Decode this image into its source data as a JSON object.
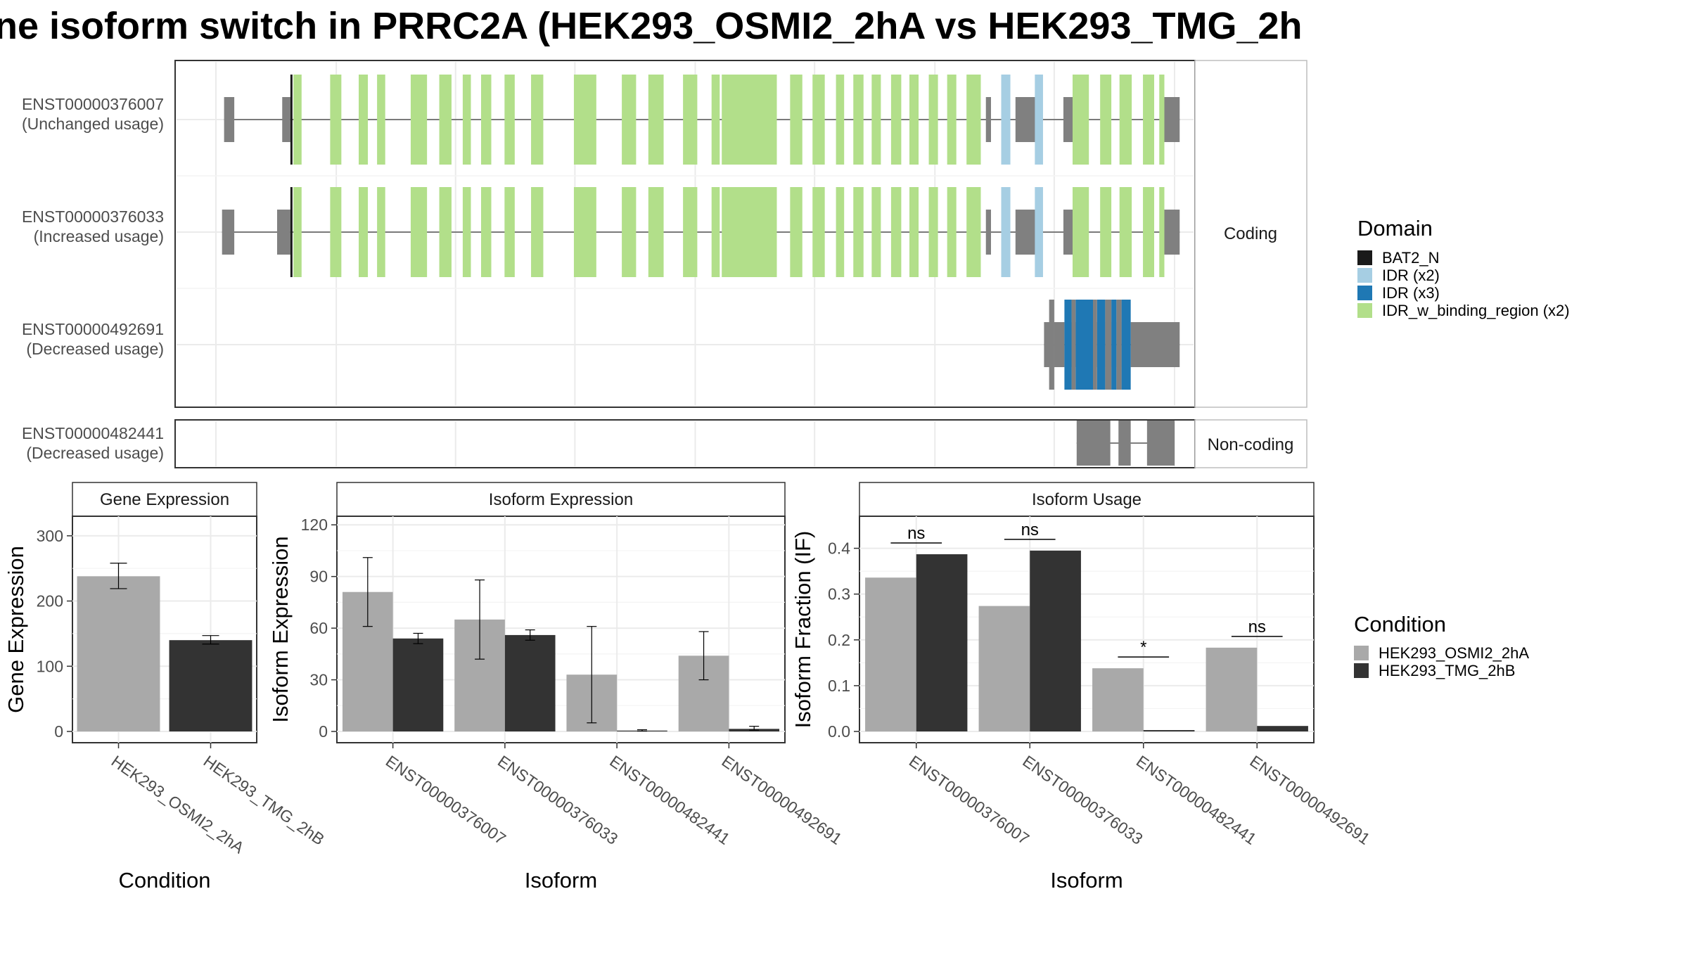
{
  "title": "ne isoform switch in PRRC2A (HEK293_OSMI2_2hA vs HEK293_TMG_2h",
  "colors": {
    "BAT2_N": "#1a1a1a",
    "IDR (x2)": "#a6cee3",
    "IDR (x3)": "#1f78b4",
    "IDR_w_binding_region (x2)": "#b2df8a",
    "utr": "#808080",
    "cond1": "#a9a9a9",
    "cond2": "#333333"
  },
  "transcript_plot": {
    "facets": [
      "Coding",
      "Non-coding"
    ],
    "domain_legend_title": "Domain",
    "domain_legend": [
      "BAT2_N",
      "IDR (x2)",
      "IDR (x3)",
      "IDR_w_binding_region (x2)"
    ],
    "x_gridlines": [
      0.04,
      0.158,
      0.275,
      0.392,
      0.51,
      0.627,
      0.745,
      0.862,
      0.98
    ],
    "transcripts": [
      {
        "id": "ENST00000376007",
        "usage": "(Unchanged usage)",
        "facet": "Coding",
        "utr_blocks": [
          [
            0.048,
            0.058
          ],
          [
            0.105,
            0.113
          ],
          [
            0.795,
            0.8
          ],
          [
            0.824,
            0.846
          ],
          [
            0.871,
            0.88
          ],
          [
            0.969,
            0.985
          ]
        ],
        "domain_blocks": [
          [
            "BAT2_N",
            0.113,
            0.115
          ],
          [
            "IDR_w_binding_region (x2)",
            0.116,
            0.124
          ],
          [
            "IDR_w_binding_region (x2)",
            0.152,
            0.163
          ],
          [
            "IDR_w_binding_region (x2)",
            0.18,
            0.189
          ],
          [
            "IDR_w_binding_region (x2)",
            0.198,
            0.206
          ],
          [
            "IDR_w_binding_region (x2)",
            0.231,
            0.247
          ],
          [
            "IDR_w_binding_region (x2)",
            0.259,
            0.271
          ],
          [
            "IDR_w_binding_region (x2)",
            0.282,
            0.29
          ],
          [
            "IDR_w_binding_region (x2)",
            0.3,
            0.31
          ],
          [
            "IDR_w_binding_region (x2)",
            0.323,
            0.333
          ],
          [
            "IDR_w_binding_region (x2)",
            0.349,
            0.361
          ],
          [
            "IDR_w_binding_region (x2)",
            0.391,
            0.413
          ],
          [
            "IDR_w_binding_region (x2)",
            0.438,
            0.452
          ],
          [
            "IDR_w_binding_region (x2)",
            0.464,
            0.479
          ],
          [
            "IDR_w_binding_region (x2)",
            0.498,
            0.512
          ],
          [
            "IDR_w_binding_region (x2)",
            0.526,
            0.534
          ],
          [
            "IDR_w_binding_region (x2)",
            0.541,
            0.568
          ],
          [
            "IDR_w_binding_region (x2)",
            0.536,
            0.59
          ],
          [
            "IDR_w_binding_region (x2)",
            0.603,
            0.615
          ],
          [
            "IDR_w_binding_region (x2)",
            0.625,
            0.637
          ],
          [
            "IDR_w_binding_region (x2)",
            0.648,
            0.656
          ],
          [
            "IDR_w_binding_region (x2)",
            0.665,
            0.675
          ],
          [
            "IDR_w_binding_region (x2)",
            0.683,
            0.692
          ],
          [
            "IDR_w_binding_region (x2)",
            0.702,
            0.712
          ],
          [
            "IDR_w_binding_region (x2)",
            0.72,
            0.729
          ],
          [
            "IDR_w_binding_region (x2)",
            0.739,
            0.748
          ],
          [
            "IDR_w_binding_region (x2)",
            0.757,
            0.766
          ],
          [
            "IDR_w_binding_region (x2)",
            0.776,
            0.79
          ],
          [
            "IDR (x2)",
            0.81,
            0.819
          ],
          [
            "IDR (x2)",
            0.843,
            0.851
          ],
          [
            "IDR_w_binding_region (x2)",
            0.88,
            0.896
          ],
          [
            "IDR_w_binding_region (x2)",
            0.907,
            0.918
          ],
          [
            "IDR_w_binding_region (x2)",
            0.926,
            0.938
          ],
          [
            "IDR_w_binding_region (x2)",
            0.949,
            0.96
          ],
          [
            "IDR_w_binding_region (x2)",
            0.965,
            0.97
          ]
        ]
      },
      {
        "id": "ENST00000376033",
        "usage": "(Increased usage)",
        "facet": "Coding",
        "utr_blocks": [
          [
            0.046,
            0.058
          ],
          [
            0.1,
            0.113
          ],
          [
            0.795,
            0.8
          ],
          [
            0.824,
            0.846
          ],
          [
            0.871,
            0.88
          ],
          [
            0.969,
            0.985
          ]
        ],
        "domain_blocks": [
          [
            "BAT2_N",
            0.113,
            0.115
          ],
          [
            "IDR_w_binding_region (x2)",
            0.116,
            0.124
          ],
          [
            "IDR_w_binding_region (x2)",
            0.152,
            0.163
          ],
          [
            "IDR_w_binding_region (x2)",
            0.18,
            0.189
          ],
          [
            "IDR_w_binding_region (x2)",
            0.198,
            0.206
          ],
          [
            "IDR_w_binding_region (x2)",
            0.231,
            0.247
          ],
          [
            "IDR_w_binding_region (x2)",
            0.259,
            0.271
          ],
          [
            "IDR_w_binding_region (x2)",
            0.282,
            0.29
          ],
          [
            "IDR_w_binding_region (x2)",
            0.3,
            0.31
          ],
          [
            "IDR_w_binding_region (x2)",
            0.323,
            0.333
          ],
          [
            "IDR_w_binding_region (x2)",
            0.349,
            0.361
          ],
          [
            "IDR_w_binding_region (x2)",
            0.391,
            0.413
          ],
          [
            "IDR_w_binding_region (x2)",
            0.438,
            0.452
          ],
          [
            "IDR_w_binding_region (x2)",
            0.464,
            0.479
          ],
          [
            "IDR_w_binding_region (x2)",
            0.498,
            0.512
          ],
          [
            "IDR_w_binding_region (x2)",
            0.526,
            0.534
          ],
          [
            "IDR_w_binding_region (x2)",
            0.536,
            0.59
          ],
          [
            "IDR_w_binding_region (x2)",
            0.603,
            0.615
          ],
          [
            "IDR_w_binding_region (x2)",
            0.625,
            0.637
          ],
          [
            "IDR_w_binding_region (x2)",
            0.648,
            0.656
          ],
          [
            "IDR_w_binding_region (x2)",
            0.665,
            0.675
          ],
          [
            "IDR_w_binding_region (x2)",
            0.683,
            0.692
          ],
          [
            "IDR_w_binding_region (x2)",
            0.702,
            0.712
          ],
          [
            "IDR_w_binding_region (x2)",
            0.72,
            0.729
          ],
          [
            "IDR_w_binding_region (x2)",
            0.739,
            0.748
          ],
          [
            "IDR_w_binding_region (x2)",
            0.757,
            0.766
          ],
          [
            "IDR_w_binding_region (x2)",
            0.776,
            0.79
          ],
          [
            "IDR (x2)",
            0.81,
            0.819
          ],
          [
            "IDR (x2)",
            0.843,
            0.851
          ],
          [
            "IDR_w_binding_region (x2)",
            0.88,
            0.896
          ],
          [
            "IDR_w_binding_region (x2)",
            0.907,
            0.918
          ],
          [
            "IDR_w_binding_region (x2)",
            0.926,
            0.938
          ],
          [
            "IDR_w_binding_region (x2)",
            0.949,
            0.96
          ],
          [
            "IDR_w_binding_region (x2)",
            0.965,
            0.97
          ]
        ]
      },
      {
        "id": "ENST00000492691",
        "usage": "(Decreased usage)",
        "facet": "Coding",
        "utr_blocks": [
          [
            0.852,
            0.862
          ],
          [
            0.862,
            0.872
          ],
          [
            0.879,
            0.883
          ],
          [
            0.9,
            0.904
          ],
          [
            0.912,
            0.918
          ],
          [
            0.923,
            0.928
          ],
          [
            0.937,
            0.985
          ]
        ],
        "domain_blocks": [
          [
            "IDR (x3)",
            0.872,
            0.879
          ],
          [
            "IDR (x3)",
            0.883,
            0.9
          ],
          [
            "IDR (x3)",
            0.904,
            0.912
          ],
          [
            "IDR (x3)",
            0.918,
            0.923
          ],
          [
            "IDR (x3)",
            0.928,
            0.937
          ]
        ]
      },
      {
        "id": "ENST00000482441",
        "usage": "(Decreased usage)",
        "facet": "Non-coding",
        "utr_blocks": [
          [
            0.884,
            0.917
          ],
          [
            0.925,
            0.937
          ],
          [
            0.953,
            0.98
          ]
        ],
        "domain_blocks": []
      }
    ]
  },
  "chart_data": [
    {
      "type": "bar",
      "title": "Gene Expression",
      "xlabel": "Condition",
      "ylabel": "Gene Expression",
      "ylim": [
        0,
        330
      ],
      "yticks": [
        0,
        100,
        200,
        300
      ],
      "categories": [
        "HEK293_OSMI2_2hA",
        "HEK293_TMG_2hB"
      ],
      "values": [
        238,
        140
      ],
      "error_low": [
        219,
        134
      ],
      "error_high": [
        258,
        147
      ]
    },
    {
      "type": "bar",
      "title": "Isoform Expression",
      "xlabel": "Isoform",
      "ylabel": "Isoform Expression",
      "ylim": [
        0,
        125
      ],
      "yticks": [
        0,
        30,
        60,
        90,
        120
      ],
      "categories": [
        "ENST00000376007",
        "ENST00000376033",
        "ENST00000482441",
        "ENST00000492691"
      ],
      "series": [
        {
          "name": "HEK293_OSMI2_2hA",
          "values": [
            81,
            65,
            33,
            44
          ],
          "error_low": [
            61,
            42,
            5,
            30
          ],
          "error_high": [
            101,
            88,
            61,
            58
          ]
        },
        {
          "name": "HEK293_TMG_2hB",
          "values": [
            54,
            56,
            0.5,
            1.5
          ],
          "error_low": [
            51,
            53,
            0.2,
            0.8
          ],
          "error_high": [
            57,
            59,
            1,
            3
          ]
        }
      ]
    },
    {
      "type": "bar",
      "title": "Isoform Usage",
      "xlabel": "Isoform",
      "ylabel": "Isoform Fraction (IF)",
      "ylim": [
        0,
        0.47
      ],
      "yticks": [
        0.0,
        0.1,
        0.2,
        0.3,
        0.4
      ],
      "categories": [
        "ENST00000376007",
        "ENST00000376033",
        "ENST00000482441",
        "ENST00000492691"
      ],
      "series": [
        {
          "name": "HEK293_OSMI2_2hA",
          "values": [
            0.336,
            0.274,
            0.138,
            0.183
          ]
        },
        {
          "name": "HEK293_TMG_2hB",
          "values": [
            0.387,
            0.395,
            0.003,
            0.012
          ]
        }
      ],
      "significance": [
        "ns",
        "ns",
        "*",
        "ns"
      ]
    }
  ],
  "condition_legend": {
    "title": "Condition",
    "items": [
      "HEK293_OSMI2_2hA",
      "HEK293_TMG_2hB"
    ]
  }
}
